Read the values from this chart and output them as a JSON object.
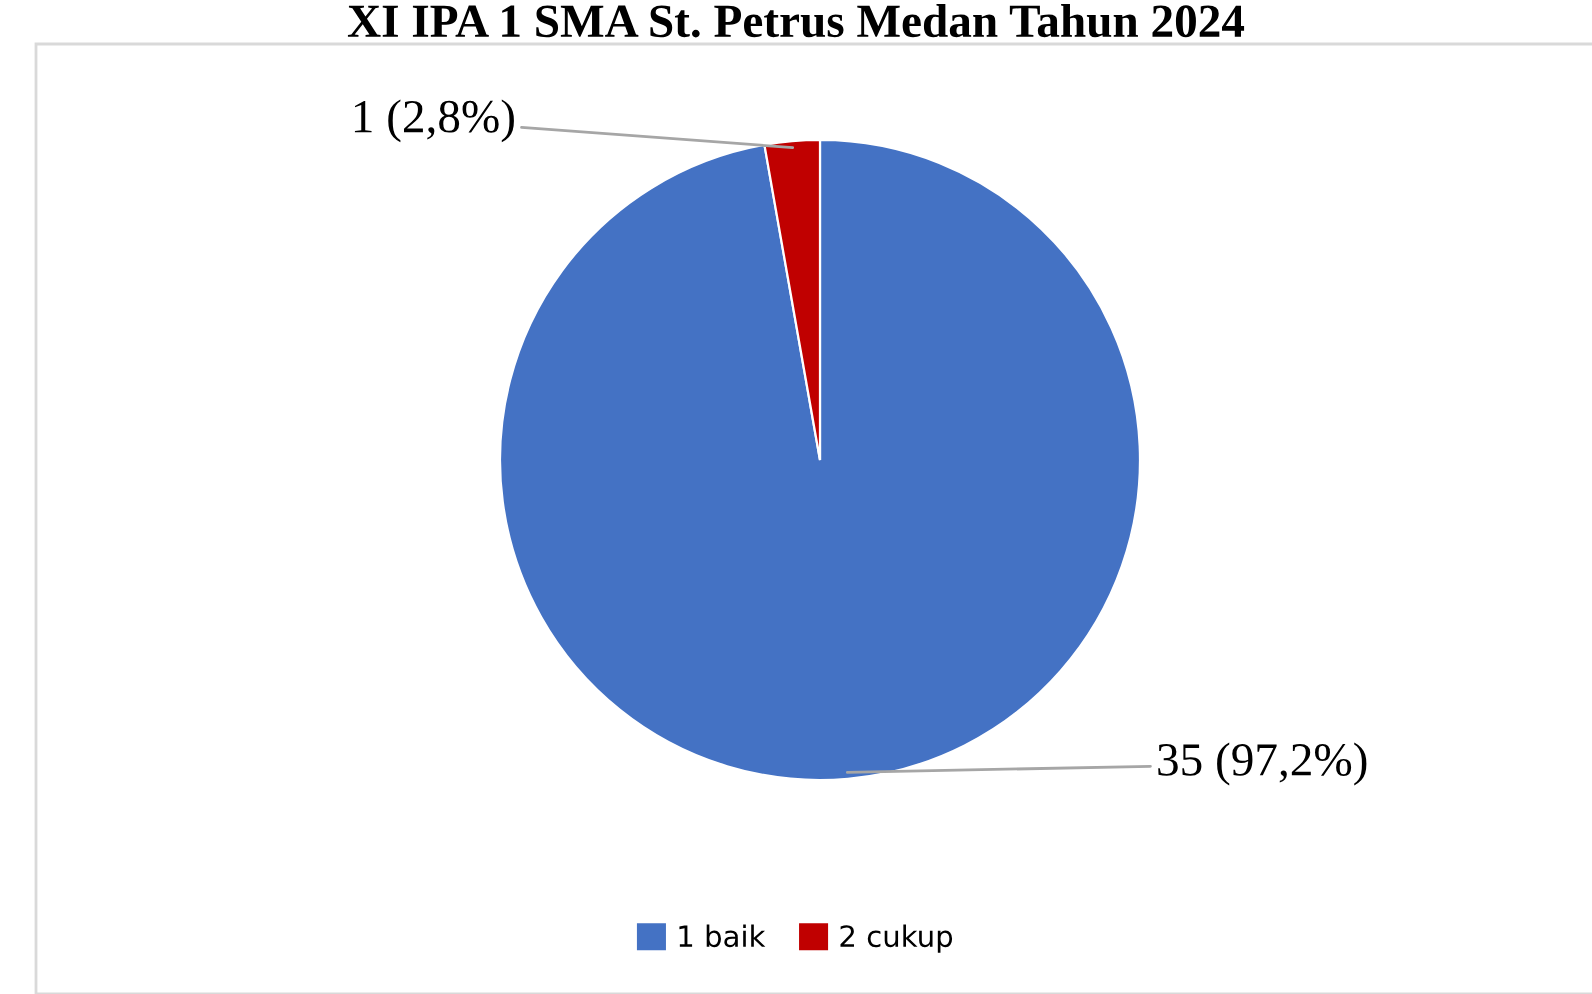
{
  "chart_data": {
    "type": "pie",
    "title": "XI IPA 1 SMA St. Petrus Medan Tahun 2024",
    "categories": [
      "1 baik",
      "2 cukup"
    ],
    "values": [
      35,
      1
    ],
    "colors": [
      "#4472c4",
      "#c00000"
    ],
    "value_labels": [
      "35 (97,2%)",
      "1 (2,8%)"
    ],
    "legend": "bottom"
  }
}
